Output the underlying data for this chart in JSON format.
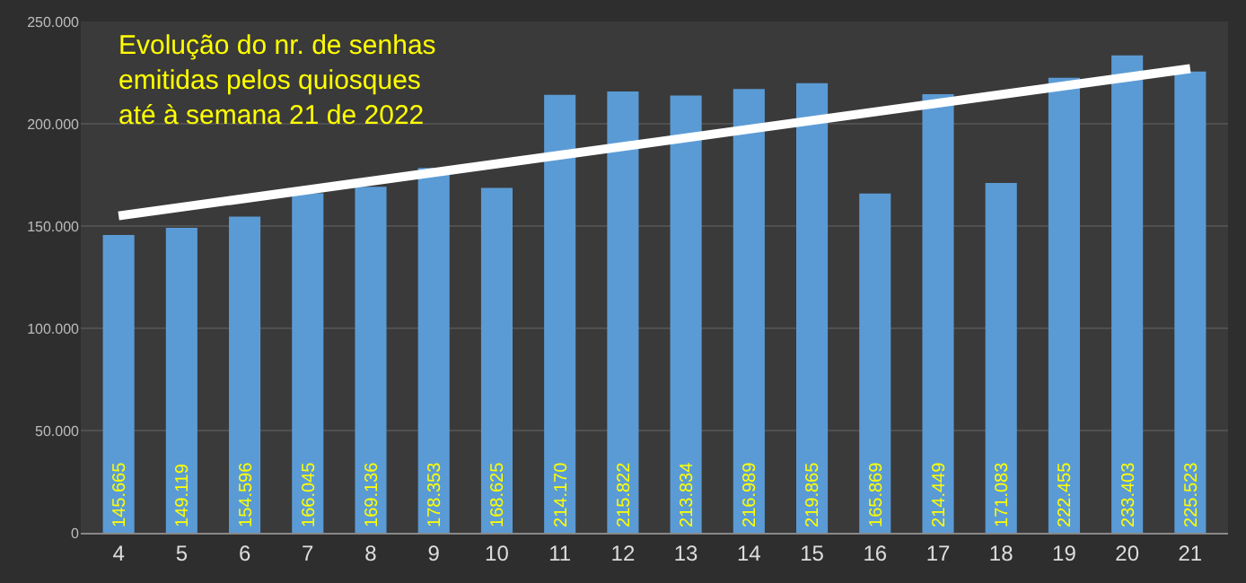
{
  "chart_data": {
    "type": "bar",
    "title": "Evolução do nr. de senhas\nemitidas pelos quiosques\naté à semana 21 de 2022",
    "categories": [
      "4",
      "5",
      "6",
      "7",
      "8",
      "9",
      "10",
      "11",
      "12",
      "13",
      "14",
      "15",
      "16",
      "17",
      "18",
      "19",
      "20",
      "21"
    ],
    "series": [
      {
        "color": "#5b9bd5",
        "values": [
          145665,
          149119,
          154596,
          166045,
          169136,
          178353,
          168625,
          214170,
          215822,
          213834,
          216989,
          219865,
          165869,
          214449,
          171083,
          222455,
          233403,
          225523
        ],
        "value_labels": [
          "145.665",
          "149.119",
          "154.596",
          "166.045",
          "169.136",
          "178.353",
          "168.625",
          "214.170",
          "215.822",
          "213.834",
          "216.989",
          "219.865",
          "165.869",
          "214.449",
          "171.083",
          "222.455",
          "233.403",
          "225.523"
        ]
      },
      {
        "type": "line",
        "color": "#ffffff",
        "x": [
          "4",
          "21"
        ],
        "values": [
          155000,
          227000
        ]
      }
    ],
    "ylim": [
      0,
      250000
    ],
    "yticks": [
      0,
      {
        "value": 50000,
        "label": "50.000"
      },
      {
        "value": 100000,
        "label": "100.000"
      },
      {
        "value": 150000,
        "label": "150.000"
      },
      {
        "value": 200000,
        "label": "200.000"
      },
      {
        "value": 250000,
        "label": "250.000"
      }
    ],
    "grid": "y"
  }
}
